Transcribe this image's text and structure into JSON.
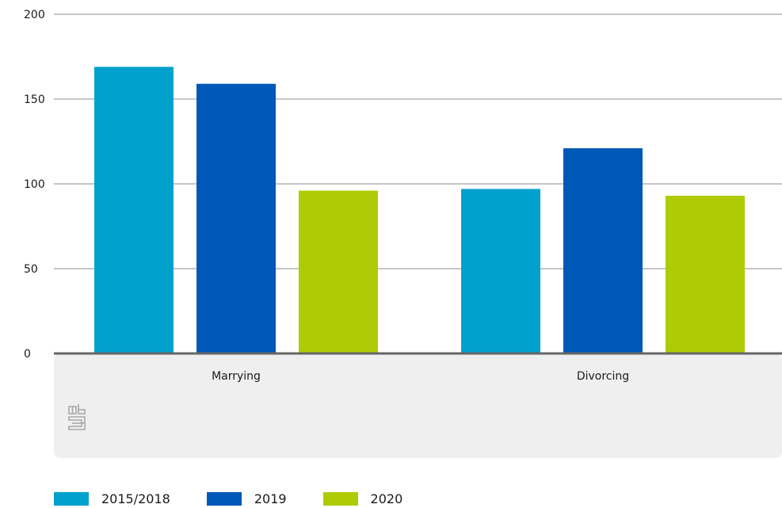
{
  "chart_data": {
    "type": "bar",
    "categories": [
      "Marrying",
      "Divorcing"
    ],
    "series": [
      {
        "name": "2015/2018",
        "color": "#00a1cd",
        "values": [
          169,
          97
        ]
      },
      {
        "name": "2019",
        "color": "#0058b8",
        "values": [
          159,
          121
        ]
      },
      {
        "name": "2020",
        "color": "#afcb05",
        "values": [
          96,
          93
        ]
      }
    ],
    "yticks": [
      0,
      50,
      100,
      150,
      200
    ],
    "ylim": [
      0,
      200
    ],
    "grid": true,
    "legend_position": "bottom-left",
    "title": "",
    "xlabel": "",
    "ylabel": ""
  },
  "logo": {
    "icon": "cbs-logo-icon",
    "text": "cbs"
  }
}
